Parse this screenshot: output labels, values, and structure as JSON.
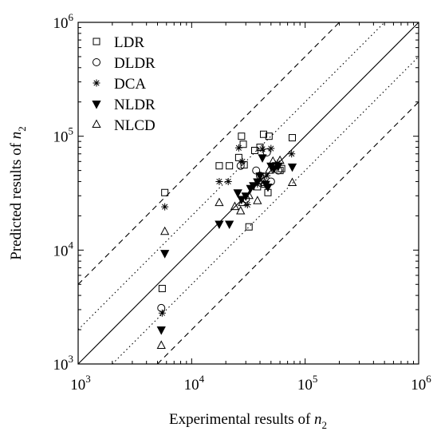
{
  "chart_data": {
    "type": "scatter",
    "x_scale": "log",
    "y_scale": "log",
    "xlim": [
      1000,
      1000000
    ],
    "ylim": [
      1000,
      1000000
    ],
    "xlabel": {
      "text": "Experimental results of ",
      "var": "n",
      "sub": "2"
    },
    "ylabel": {
      "text": "Predicted results of ",
      "var": "n",
      "sub": "2"
    },
    "x_ticks": [
      {
        "value": 1000,
        "base": "10",
        "exp": "3"
      },
      {
        "value": 10000,
        "base": "10",
        "exp": "4"
      },
      {
        "value": 100000,
        "base": "10",
        "exp": "5"
      },
      {
        "value": 1000000,
        "base": "10",
        "exp": "6"
      }
    ],
    "y_ticks": [
      {
        "value": 1000,
        "base": "10",
        "exp": "3"
      },
      {
        "value": 10000,
        "base": "10",
        "exp": "4"
      },
      {
        "value": 100000,
        "base": "10",
        "exp": "5"
      },
      {
        "value": 1000000,
        "base": "10",
        "exp": "6"
      }
    ],
    "grid": false,
    "legend_position": "top-left",
    "reference_lines": [
      {
        "ratio": 5,
        "style": "dashed"
      },
      {
        "ratio": 2,
        "style": "dotted"
      },
      {
        "ratio": 1,
        "style": "solid"
      },
      {
        "ratio": 0.5,
        "style": "dotted"
      },
      {
        "ratio": 0.2,
        "style": "dashed"
      }
    ],
    "series": [
      {
        "name": "LDR",
        "marker": "square-open",
        "points": [
          [
            5500,
            4600
          ],
          [
            5800,
            32000
          ],
          [
            17500,
            55000
          ],
          [
            21500,
            55000
          ],
          [
            26000,
            65000
          ],
          [
            27500,
            100000
          ],
          [
            28500,
            85000
          ],
          [
            29000,
            56000
          ],
          [
            32000,
            16000
          ],
          [
            36000,
            75000
          ],
          [
            40000,
            80000
          ],
          [
            43000,
            104000
          ],
          [
            48000,
            100000
          ],
          [
            38000,
            36000
          ],
          [
            44000,
            38000
          ],
          [
            47000,
            32000
          ],
          [
            55000,
            55000
          ],
          [
            60000,
            50000
          ],
          [
            62000,
            52000
          ],
          [
            77000,
            97000
          ]
        ]
      },
      {
        "name": "DLDR",
        "marker": "circle-open",
        "points": [
          [
            5400,
            3100
          ],
          [
            27000,
            55000
          ],
          [
            30000,
            28000
          ],
          [
            37000,
            50000
          ],
          [
            40000,
            45000
          ],
          [
            46000,
            72000
          ],
          [
            50000,
            40000
          ],
          [
            58000,
            50000
          ]
        ]
      },
      {
        "name": "DCA",
        "marker": "star",
        "points": [
          [
            5500,
            2800
          ],
          [
            5800,
            24000
          ],
          [
            17500,
            40000
          ],
          [
            21000,
            40000
          ],
          [
            26000,
            79000
          ],
          [
            28000,
            60000
          ],
          [
            31000,
            25000
          ],
          [
            38000,
            38000
          ],
          [
            42000,
            77000
          ],
          [
            46000,
            45000
          ],
          [
            50000,
            78000
          ],
          [
            57000,
            58000
          ],
          [
            76000,
            70000
          ]
        ]
      },
      {
        "name": "NLDR",
        "marker": "triangle-down-filled",
        "points": [
          [
            5400,
            2000
          ],
          [
            5800,
            9400
          ],
          [
            17500,
            17000
          ],
          [
            21500,
            17000
          ],
          [
            25500,
            32000
          ],
          [
            27500,
            28000
          ],
          [
            30000,
            30000
          ],
          [
            33000,
            35000
          ],
          [
            35000,
            37000
          ],
          [
            38000,
            40000
          ],
          [
            40000,
            45000
          ],
          [
            42000,
            65000
          ],
          [
            45000,
            38000
          ],
          [
            47000,
            36000
          ],
          [
            50000,
            55000
          ],
          [
            53000,
            52000
          ],
          [
            58000,
            55000
          ],
          [
            77000,
            54000
          ]
        ]
      },
      {
        "name": "NLCD",
        "marker": "triangle-up-open",
        "points": [
          [
            5400,
            1450
          ],
          [
            5800,
            14500
          ],
          [
            17500,
            26000
          ],
          [
            24000,
            24000
          ],
          [
            27000,
            22000
          ],
          [
            28000,
            26000
          ],
          [
            32000,
            30000
          ],
          [
            38000,
            27000
          ],
          [
            44000,
            39000
          ],
          [
            48000,
            50000
          ],
          [
            52000,
            60000
          ],
          [
            60000,
            61000
          ],
          [
            77000,
            39000
          ]
        ]
      }
    ]
  }
}
